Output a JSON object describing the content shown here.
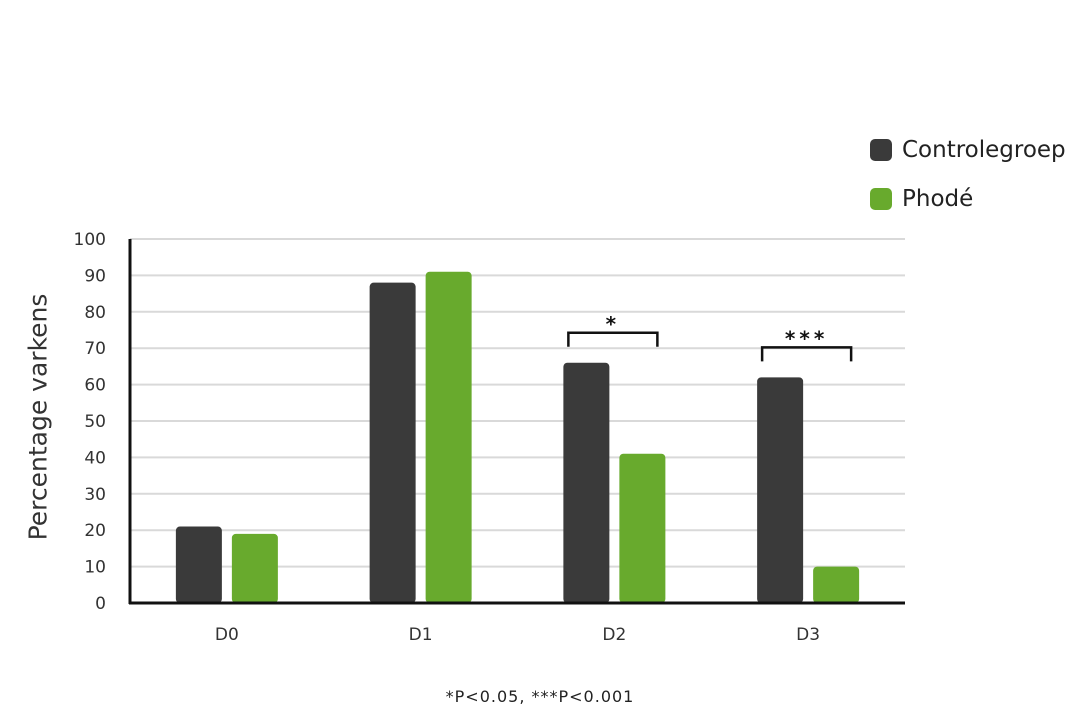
{
  "chart_data": {
    "type": "bar",
    "categories": [
      "D0",
      "D1",
      "D2",
      "D3"
    ],
    "series": [
      {
        "name": "Controlegroep",
        "color": "#3a3a3a",
        "values": [
          21,
          88,
          66,
          62
        ]
      },
      {
        "name": "Phodé",
        "color": "#68aa2d",
        "values": [
          19,
          91,
          41,
          10
        ]
      }
    ],
    "ylabel": "Percentage varkens",
    "xlabel": "",
    "ylim": [
      0,
      100
    ],
    "yticks": [
      "0",
      "10",
      "20",
      "30",
      "40",
      "50",
      "60",
      "70",
      "80",
      "90",
      "100"
    ],
    "grid": true,
    "legend_position": "top-right",
    "significance": [
      {
        "category": "D2",
        "label": "*"
      },
      {
        "category": "D3",
        "label": "***"
      }
    ],
    "footnote": "*P<0.05, ***P<0.001"
  }
}
